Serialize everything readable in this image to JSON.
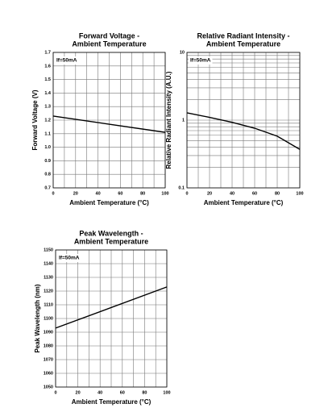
{
  "chart_data": [
    {
      "type": "line",
      "title": [
        "Forward Voltage -",
        "Ambient Temperature"
      ],
      "xlabel": "Ambient Temperature (°C)",
      "ylabel": "Forward Voltage (V)",
      "annotation": "If=50mA",
      "x": [
        0,
        50,
        100
      ],
      "values": [
        1.23,
        1.17,
        1.11
      ],
      "color": "#000000",
      "xlim": [
        0,
        100
      ],
      "xticks": [
        0,
        20,
        40,
        60,
        80,
        100
      ],
      "xminorticks": [
        10,
        30,
        50,
        70,
        90
      ],
      "ylim": [
        0.7,
        1.7
      ],
      "yticks": [
        0.7,
        0.8,
        0.9,
        {
          "value": 1,
          "label": "1.0"
        },
        1.1,
        1.2,
        1.3,
        1.4,
        1.5,
        1.6,
        1.7
      ],
      "grid": true
    },
    {
      "type": "line",
      "title": [
        "Relative Radiant Intensity -",
        "Ambient Temperature"
      ],
      "xlabel": "Ambient Temperature (°C)",
      "ylabel": "Relative Radiant Intensity (A.U.)",
      "annotation": "If=50mA",
      "x": [
        0,
        20,
        40,
        60,
        80,
        100
      ],
      "values": [
        1.28,
        1.1,
        0.93,
        0.76,
        0.58,
        0.37
      ],
      "color": "#000000",
      "xlim": [
        0,
        100
      ],
      "xticks": [
        0,
        20,
        40,
        60,
        80,
        100
      ],
      "xminorticks": [
        10,
        30,
        50,
        70,
        90
      ],
      "ylim": [
        0.1,
        10
      ],
      "yticks": [
        0.1,
        1,
        10
      ],
      "yminorticks": [
        0.2,
        0.3,
        0.4,
        0.5,
        0.6,
        0.7,
        0.8,
        0.9,
        2,
        3,
        4,
        5,
        6,
        7,
        8,
        9
      ],
      "yscale": "log",
      "grid": true
    },
    {
      "type": "line",
      "title": [
        "Peak Wavelength -",
        "Ambient Temperature"
      ],
      "xlabel": "Ambient Temperature (°C)",
      "ylabel": "Peak Wavelength (nm)",
      "annotation": "If=50mA",
      "x": [
        0,
        100
      ],
      "values": [
        1093,
        1123
      ],
      "color": "#000000",
      "xlim": [
        0,
        100
      ],
      "xticks": [
        0,
        20,
        40,
        60,
        80,
        100
      ],
      "xminorticks": [
        10,
        30,
        50,
        70,
        90
      ],
      "ylim": [
        1050,
        1150
      ],
      "yticks": [
        1050,
        1060,
        1070,
        1080,
        1090,
        1100,
        1110,
        1120,
        1130,
        1140,
        1150
      ],
      "grid": true
    }
  ]
}
